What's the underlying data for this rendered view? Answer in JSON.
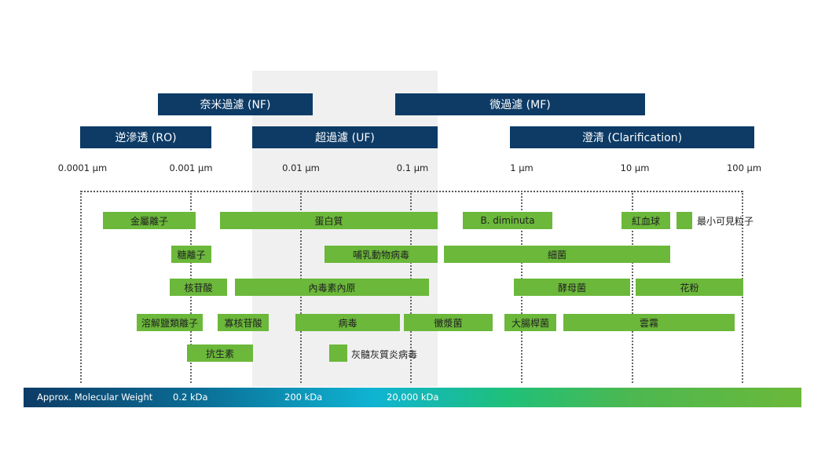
{
  "processes": {
    "nf": "奈米過濾 (NF)",
    "mf": "微過濾 (MF)",
    "ro": "逆滲透 (RO)",
    "uf": "超過濾 (UF)",
    "clarification": "澄清 (Clarification)"
  },
  "scale_ticks": [
    "0.0001 µm",
    "0.001 µm",
    "0.01 µm",
    "0.1 µm",
    "1 µm",
    "10 µm",
    "100 µm"
  ],
  "particles": {
    "metal_ions": "金屬離子",
    "protein": "蛋白質",
    "b_diminuta": "B. diminuta",
    "red_blood_cells": "紅血球",
    "sugar_ions": "糖離子",
    "mammalian_virus": "哺乳動物病毒",
    "bacteria": "細菌",
    "nucleotides": "核苷酸",
    "endotoxin": "內毒素內原",
    "yeast": "酵母菌",
    "pollen": "花粉",
    "dissolved_salts": "溶解鹽類離子",
    "oligonucleotides": "寡核苷酸",
    "virus": "病毒",
    "mycoplasma": "黴漿菌",
    "e_coli": "大腸桿菌",
    "mist": "雲霧",
    "antibiotics": "抗生素"
  },
  "legend": {
    "visible_particle": "最小可見粒子",
    "polio_virus": "灰髓灰質炎病毒"
  },
  "molecular_weight": {
    "label": "Approx. Molecular Weight",
    "values": [
      "0.2 kDa",
      "200 kDa",
      "20,000 kDa"
    ]
  },
  "colors": {
    "header": "#0d3b66",
    "bar": "#6bb83a",
    "band": "#f0f0f0"
  }
}
